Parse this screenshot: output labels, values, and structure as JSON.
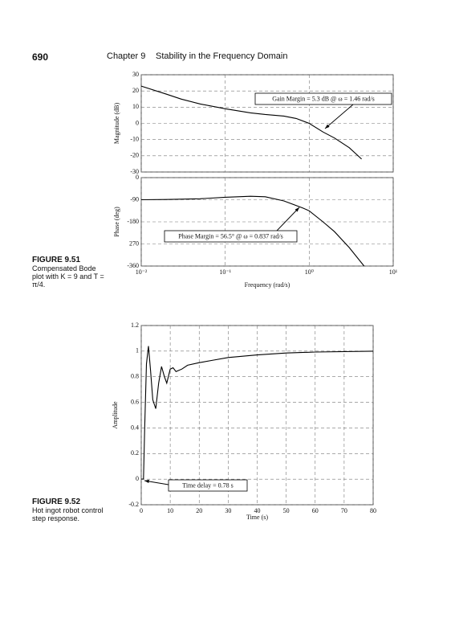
{
  "header": {
    "page_number": "690",
    "chapter": "Chapter 9",
    "chapter_title": "Stability in the Frequency Domain"
  },
  "figures": [
    {
      "label": "FIGURE 9.51",
      "caption": "Compensated Bode plot with K = 9 and T = π/4."
    },
    {
      "label": "FIGURE 9.52",
      "caption": "Hot ingot robot control step response."
    }
  ],
  "chart_data": [
    {
      "type": "line",
      "ylabel": "Magnitude (dB)",
      "log_x": true,
      "grid": true,
      "show_xtick_labels": false,
      "color": "#000000",
      "annotation": "Gain Margin = 5.3 dB @ ω = 1.46 rad/s",
      "xlim": [
        0.01,
        10
      ],
      "ylim": [
        -30,
        30
      ],
      "xticks": [
        0.01,
        0.1,
        1,
        10
      ],
      "yticks": [
        -30,
        -20,
        -10,
        0,
        10,
        20,
        30
      ],
      "x": [
        0.01,
        0.02,
        0.03,
        0.05,
        0.1,
        0.2,
        0.3,
        0.5,
        0.7,
        1,
        1.46,
        2,
        3,
        4.2
      ],
      "values": [
        23,
        18,
        15,
        12,
        9,
        6.5,
        5.5,
        4.5,
        3,
        0,
        -5.3,
        -9,
        -15,
        -22
      ]
    },
    {
      "type": "line",
      "ylabel": "Phase (deg)",
      "xlabel": "Frequency (rad/s)",
      "log_x": true,
      "grid": true,
      "show_xtick_labels": true,
      "color": "#000000",
      "annotation": "Phase Margin = 56.5° @ ω = 0.837 rad/s",
      "xlim": [
        0.01,
        10
      ],
      "ylim": [
        -360,
        0
      ],
      "xticks": [
        {
          "value": 0.01,
          "label": "10⁻²"
        },
        {
          "value": 0.1,
          "label": "10⁻¹"
        },
        {
          "value": 1,
          "label": "10⁰"
        },
        {
          "value": 10,
          "label": "10¹"
        }
      ],
      "yticks": [
        -360,
        {
          "value": -270,
          "label": "270"
        },
        -180,
        -90,
        0
      ],
      "x": [
        0.01,
        0.02,
        0.05,
        0.1,
        0.2,
        0.3,
        0.5,
        0.837,
        1,
        1.46,
        2,
        3,
        4.5
      ],
      "values": [
        -90,
        -89,
        -86,
        -80,
        -76,
        -78,
        -95,
        -123.5,
        -135,
        -180,
        -220,
        -285,
        -360
      ]
    },
    {
      "type": "line",
      "ylabel": "Amplitude",
      "xlabel": "Time (s)",
      "log_x": false,
      "grid": true,
      "show_xtick_labels": true,
      "color": "#000000",
      "annotation": "Time delay = 0.78 s",
      "xlim": [
        0,
        80
      ],
      "ylim": [
        -0.2,
        1.2
      ],
      "xticks": [
        0,
        10,
        20,
        30,
        40,
        50,
        60,
        70,
        80
      ],
      "yticks": [
        -0.2,
        0,
        0.2,
        0.4,
        0.6,
        0.8,
        1,
        1.2
      ],
      "x": [
        0,
        0.78,
        1.2,
        1.8,
        2.5,
        3.2,
        4,
        5,
        6,
        7,
        8,
        8.8,
        10,
        11,
        12,
        14,
        16,
        20,
        25,
        30,
        40,
        50,
        60,
        80
      ],
      "values": [
        0,
        0,
        0.4,
        0.9,
        1.04,
        0.85,
        0.62,
        0.55,
        0.75,
        0.88,
        0.8,
        0.75,
        0.86,
        0.87,
        0.84,
        0.86,
        0.89,
        0.91,
        0.93,
        0.95,
        0.97,
        0.985,
        0.993,
        1
      ]
    }
  ]
}
